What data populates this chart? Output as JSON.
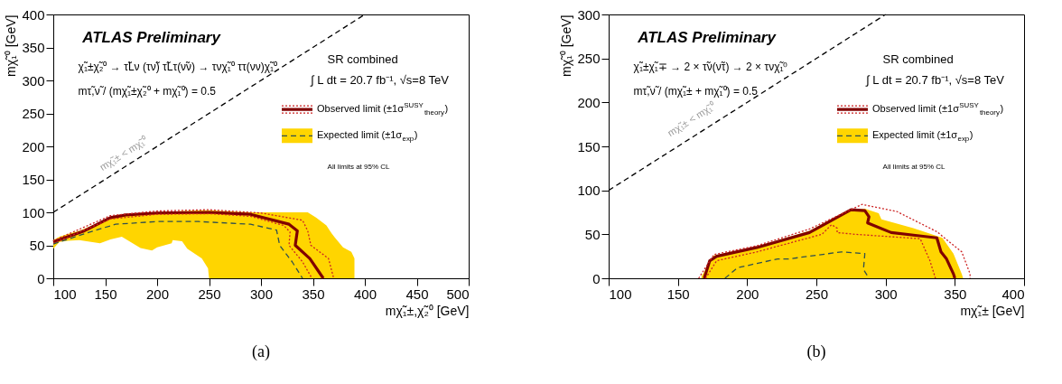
{
  "chart_data": [
    {
      "type": "line",
      "title": "(a)",
      "xlabel": "mχ̃₁±,χ̃₂⁰ [GeV]",
      "ylabel": "mχ̃₁⁰ [GeV]",
      "xlim": [
        100,
        500
      ],
      "ylim": [
        0,
        400
      ],
      "xticks": [
        100,
        150,
        200,
        250,
        300,
        350,
        400,
        450,
        500
      ],
      "yticks": [
        0,
        50,
        100,
        150,
        200,
        250,
        300,
        350,
        400
      ],
      "grid": false,
      "legend": "top right",
      "annotations": [
        "ATLAS Preliminary",
        "χ̃₁±χ̃₂⁰ → τ̃Lν (τν̃) τ̃Lτ(ν̃ν) → τνχ̃₁⁰ ττ(νν)χ̃₁⁰",
        "mτ̃,ν̃ / (mχ̃₁±χ̃₂⁰ + mχ̃₁⁰) = 0.5",
        "SR combined",
        "∫ L dt = 20.7 fb⁻¹, √s=8 TeV",
        "All limits at 95% CL",
        "mχ̃₁± < mχ̃₁⁰"
      ],
      "series": [
        {
          "name": "Observed limit (±1σ$^{SUSY}$$_{theory}$)",
          "color": "#800000",
          "line_style": "solid",
          "x": [
            100,
            130,
            155,
            170,
            200,
            250,
            290,
            327,
            335,
            333,
            347,
            360
          ],
          "values": [
            55,
            72,
            92,
            96,
            99,
            100,
            97,
            82,
            72,
            50,
            30,
            0
          ]
        },
        {
          "color": "#cc2222",
          "line_style": "dotted",
          "x": [
            100,
            155,
            200,
            250,
            300,
            340,
            345,
            348,
            365,
            370
          ],
          "values": [
            57,
            95,
            102,
            104,
            99,
            88,
            72,
            50,
            30,
            0
          ]
        },
        {
          "color": "#cc2222",
          "line_style": "dotted",
          "x": [
            100,
            155,
            200,
            250,
            290,
            322,
            328,
            327,
            340,
            349
          ],
          "values": [
            53,
            90,
            97,
            98,
            94,
            80,
            70,
            50,
            25,
            0
          ]
        },
        {
          "type": "area",
          "color": "#ffd500",
          "x": [
            100,
            106,
            114,
            125,
            145,
            155,
            166,
            184,
            195,
            200,
            214,
            215,
            224,
            229,
            243,
            249,
            250,
            290,
            345,
            353,
            363,
            368,
            371,
            379,
            387,
            390
          ],
          "values": [
            null,
            null,
            null,
            null,
            null,
            null,
            null,
            null,
            null,
            null,
            null,
            null,
            null,
            null,
            null,
            null,
            null,
            null,
            null,
            null,
            null,
            null,
            null,
            null,
            null,
            null
          ],
          "lower": [
            45,
            55,
            57,
            58,
            53,
            59,
            63,
            46,
            42,
            47,
            53,
            58,
            56,
            45,
            30,
            15,
            0,
            0,
            0,
            0,
            0,
            0,
            0,
            0,
            0,
            0
          ],
          "upper": [
            58,
            63,
            67,
            72,
            85,
            93,
            97,
            99,
            100,
            100,
            101,
            101,
            102,
            102,
            103,
            103,
            103,
            100,
            100,
            92,
            80,
            68,
            62,
            47,
            40,
            30
          ]
        },
        {
          "name": "Expected limit (±1σ$_{exp}$)",
          "color": "#2f4f4f",
          "line_style": "dashed",
          "x": [
            100,
            135,
            160,
            200,
            240,
            290,
            315,
            318,
            330,
            340
          ],
          "values": [
            52,
            70,
            82,
            86,
            86,
            82,
            73,
            50,
            25,
            0
          ]
        },
        {
          "color": "#000000",
          "line_style": "dashed",
          "x": [
            100,
            400
          ],
          "values": [
            100,
            400
          ]
        }
      ]
    },
    {
      "type": "line",
      "title": "(b)",
      "xlabel": "mχ̃₁± [GeV]",
      "ylabel": "mχ̃₁⁰ [GeV]",
      "xlim": [
        100,
        400
      ],
      "ylim": [
        0,
        300
      ],
      "xticks": [
        100,
        150,
        200,
        250,
        300,
        350,
        400
      ],
      "yticks": [
        0,
        50,
        100,
        150,
        200,
        250,
        300
      ],
      "grid": false,
      "legend": "top right",
      "annotations": [
        "ATLAS Preliminary",
        "χ̃₁±χ̃₁∓ → 2 × τ̃ν(ν̃τ) → 2 × τνχ̃₁⁰",
        "mτ̃,ν̃ / (mχ̃₁± + mχ̃₁⁰) = 0.5",
        "SR combined",
        "∫ L dt = 20.7 fb⁻¹, √s=8 TeV",
        "All limits at 95% CL",
        "mχ̃₁± < mχ̃₁⁰"
      ],
      "series": [
        {
          "name": "Observed limit (±1σ$^{SUSY}$$_{theory}$)",
          "color": "#800000",
          "line_style": "solid",
          "x": [
            169,
            173,
            178,
            207,
            245,
            275,
            285,
            288,
            287,
            304,
            337,
            340,
            344,
            349,
            350
          ],
          "values": [
            0,
            20,
            25,
            35,
            52,
            78,
            77,
            70,
            63,
            52,
            46,
            30,
            22,
            5,
            0
          ]
        },
        {
          "color": "#cc2222",
          "line_style": "dotted",
          "x": [
            165,
            176,
            207,
            245,
            283,
            308,
            337,
            355,
            361,
            361
          ],
          "values": [
            0,
            27,
            37,
            56,
            84,
            76,
            53,
            30,
            5,
            0
          ]
        },
        {
          "color": "#cc2222",
          "line_style": "dotted",
          "x": [
            170,
            178,
            207,
            254,
            261,
            265,
            265,
            278,
            325,
            332,
            336
          ],
          "values": [
            0,
            20,
            30,
            50,
            61,
            57,
            52,
            50,
            45,
            20,
            0
          ]
        },
        {
          "type": "area",
          "color": "#ffd500",
          "x": [
            167,
            176,
            207,
            245,
            275,
            285,
            295,
            297,
            320,
            341,
            349,
            355,
            356
          ],
          "values": [
            null,
            null,
            null,
            null,
            null,
            null,
            null,
            null,
            null,
            null,
            null,
            null,
            null
          ],
          "lower": [
            0,
            0,
            0,
            0,
            0,
            0,
            0,
            0,
            0,
            0,
            0,
            0,
            0
          ],
          "upper": [
            2,
            26,
            36,
            54,
            79,
            79,
            74,
            67,
            57,
            46,
            28,
            5,
            0
          ]
        },
        {
          "name": "Expected limit (±1σ$_{exp}$)",
          "color": "#2f4f4f",
          "line_style": "dashed",
          "x": [
            184,
            193,
            222,
            230,
            268,
            285,
            284,
            288
          ],
          "values": [
            0,
            12,
            22,
            22,
            30,
            28,
            10,
            0
          ]
        },
        {
          "color": "#000000",
          "line_style": "dashed",
          "x": [
            100,
            300
          ],
          "values": [
            100,
            300
          ]
        }
      ]
    }
  ]
}
